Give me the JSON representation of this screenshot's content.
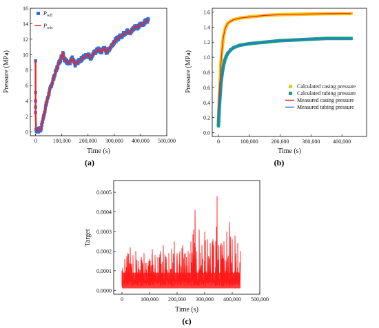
{
  "figure": {
    "panels": [
      "(a)",
      "(b)",
      "(c)"
    ]
  },
  "chart_data": [
    {
      "panel": "(a)",
      "type": "line",
      "xlabel": "Time (s)",
      "ylabel": "Pressure (MPa)",
      "xlim": [
        -20000,
        500000
      ],
      "ylim": [
        -0.5,
        16
      ],
      "xticks": [
        0,
        100000,
        200000,
        300000,
        400000,
        500000
      ],
      "xtick_labels": [
        "0",
        "100,000",
        "200,000",
        "300,000",
        "400,000",
        "500,000"
      ],
      "yticks": [
        0,
        2,
        4,
        6,
        8,
        10,
        12,
        14,
        16
      ],
      "ytick_labels": [
        "0",
        "2",
        "4",
        "6",
        "8",
        "10",
        "12",
        "14",
        "16"
      ],
      "legend_position": "top-left",
      "colors": {
        "measured": "#2e6fd8",
        "calculated": "#e8282e"
      },
      "series": [
        {
          "name": "P_wfl",
          "legend_main": "P",
          "legend_sub": "wfl",
          "style": "square-markers",
          "x": [
            0,
            0,
            0,
            0,
            0,
            2000,
            5000,
            10000,
            15000,
            20000,
            30000,
            40000,
            50000,
            60000,
            70000,
            80000,
            90000,
            100000,
            105000,
            110000,
            120000,
            130000,
            140000,
            150000,
            160000,
            170000,
            180000,
            190000,
            200000,
            210000,
            220000,
            230000,
            240000,
            250000,
            260000,
            270000,
            280000,
            290000,
            300000,
            310000,
            320000,
            330000,
            340000,
            350000,
            360000,
            370000,
            380000,
            390000,
            400000,
            410000,
            420000,
            430000
          ],
          "y": [
            9.2,
            5.1,
            4.0,
            3.2,
            2.5,
            0.3,
            0.2,
            0.2,
            0.3,
            0.3,
            1.9,
            3.5,
            4.9,
            6.0,
            7.1,
            8.1,
            9.0,
            9.8,
            10.2,
            9.3,
            9.1,
            8.9,
            9.5,
            8.7,
            9.0,
            9.3,
            9.6,
            9.8,
            10.0,
            9.6,
            10.1,
            10.4,
            10.7,
            10.3,
            10.9,
            10.3,
            10.7,
            11.2,
            11.7,
            12.0,
            12.3,
            12.5,
            12.8,
            13.0,
            12.8,
            13.3,
            13.7,
            13.5,
            13.9,
            14.0,
            14.3,
            14.5
          ]
        },
        {
          "name": "P_wfc",
          "legend_main": "P",
          "legend_sub": "wfc",
          "style": "line",
          "x": [
            0,
            0,
            0,
            0,
            0,
            2000,
            5000,
            10000,
            15000,
            20000,
            30000,
            40000,
            50000,
            60000,
            70000,
            80000,
            90000,
            100000,
            105000,
            110000,
            120000,
            130000,
            140000,
            150000,
            160000,
            170000,
            180000,
            190000,
            200000,
            210000,
            220000,
            230000,
            240000,
            250000,
            260000,
            270000,
            280000,
            290000,
            300000,
            310000,
            320000,
            330000,
            340000,
            350000,
            360000,
            370000,
            380000,
            390000,
            400000,
            410000,
            420000,
            430000
          ],
          "y": [
            9.2,
            5.1,
            4.0,
            3.2,
            2.5,
            0.3,
            0.2,
            0.2,
            0.3,
            0.3,
            1.9,
            3.5,
            4.9,
            6.0,
            7.1,
            8.1,
            9.0,
            9.8,
            10.2,
            9.3,
            9.1,
            8.9,
            9.5,
            8.7,
            9.0,
            9.3,
            9.6,
            9.8,
            10.0,
            9.6,
            10.1,
            10.4,
            10.7,
            10.3,
            10.9,
            10.3,
            10.7,
            11.2,
            11.7,
            12.0,
            12.3,
            12.5,
            12.8,
            13.0,
            12.8,
            13.3,
            13.7,
            13.5,
            13.9,
            14.0,
            14.3,
            14.5
          ]
        }
      ]
    },
    {
      "panel": "(b)",
      "type": "line",
      "xlabel": "Time (s)",
      "ylabel": "Pressure (MPa)",
      "xlim": [
        -20000,
        480000
      ],
      "ylim": [
        -0.05,
        1.65
      ],
      "xticks": [
        0,
        100000,
        200000,
        300000,
        400000
      ],
      "xtick_labels": [
        "0",
        "100,000",
        "200,000",
        "300,000",
        "400,000"
      ],
      "yticks": [
        0.0,
        0.2,
        0.4,
        0.6,
        0.8,
        1.0,
        1.2,
        1.4,
        1.6
      ],
      "ytick_labels": [
        "0.0",
        "0.2",
        "0.4",
        "0.6",
        "0.8",
        "1.0",
        "1.2",
        "1.4",
        "1.6"
      ],
      "legend_position": "center-right",
      "series": [
        {
          "name": "Calculated casing pressure",
          "style": "square-markers",
          "color": "#f5c518",
          "x": [
            0,
            2000,
            5000,
            8000,
            12000,
            16000,
            20000,
            25000,
            30000,
            40000,
            50000,
            70000,
            100000,
            150000,
            200000,
            250000,
            300000,
            350000,
            400000,
            430000
          ],
          "y": [
            0.12,
            0.35,
            0.65,
            0.9,
            1.12,
            1.26,
            1.35,
            1.41,
            1.45,
            1.48,
            1.5,
            1.52,
            1.535,
            1.555,
            1.565,
            1.57,
            1.575,
            1.578,
            1.58,
            1.58
          ]
        },
        {
          "name": "Calculated tubing pressure",
          "style": "square-markers",
          "color": "#1a9e8a",
          "x": [
            0,
            2000,
            5000,
            8000,
            12000,
            16000,
            20000,
            25000,
            30000,
            40000,
            50000,
            70000,
            100000,
            150000,
            200000,
            250000,
            300000,
            350000,
            400000,
            430000
          ],
          "y": [
            0.09,
            0.27,
            0.47,
            0.64,
            0.78,
            0.88,
            0.95,
            1.01,
            1.05,
            1.1,
            1.13,
            1.16,
            1.18,
            1.2,
            1.22,
            1.23,
            1.24,
            1.25,
            1.25,
            1.25
          ]
        },
        {
          "name": "Measured casing pressure",
          "style": "line",
          "color": "#e8282e",
          "x": [
            0,
            2000,
            5000,
            8000,
            12000,
            16000,
            20000,
            25000,
            30000,
            40000,
            50000,
            70000,
            100000,
            150000,
            200000,
            250000,
            300000,
            350000,
            400000,
            430000
          ],
          "y": [
            0.12,
            0.35,
            0.65,
            0.9,
            1.12,
            1.26,
            1.35,
            1.41,
            1.45,
            1.48,
            1.5,
            1.52,
            1.535,
            1.555,
            1.565,
            1.57,
            1.575,
            1.578,
            1.58,
            1.58
          ]
        },
        {
          "name": "Measured tubing pressure",
          "style": "line",
          "color": "#2e6fd8",
          "x": [
            0,
            2000,
            5000,
            8000,
            12000,
            16000,
            20000,
            25000,
            30000,
            40000,
            50000,
            70000,
            100000,
            150000,
            200000,
            250000,
            300000,
            350000,
            400000,
            430000
          ],
          "y": [
            0.09,
            0.27,
            0.47,
            0.64,
            0.78,
            0.88,
            0.95,
            1.01,
            1.05,
            1.1,
            1.13,
            1.16,
            1.18,
            1.2,
            1.22,
            1.23,
            1.24,
            1.25,
            1.25,
            1.25
          ]
        }
      ]
    },
    {
      "panel": "(c)",
      "type": "line",
      "xlabel": "Time (s)",
      "ylabel": "Target",
      "xlim": [
        -30000,
        500000
      ],
      "ylim": [
        -2e-05,
        0.00056
      ],
      "xticks": [
        0,
        100000,
        200000,
        300000,
        400000,
        500000
      ],
      "xtick_labels": [
        "0",
        "100,000",
        "200,000",
        "300,000",
        "400,000",
        "500,000"
      ],
      "yticks": [
        0.0,
        0.0001,
        0.0002,
        0.0003,
        0.0004,
        0.0005
      ],
      "ytick_labels": [
        "0.0000",
        "0.0001",
        "0.0002",
        "0.0003",
        "0.0004",
        "0.0005"
      ],
      "color": "#ff1a1a",
      "series": [
        {
          "name": "",
          "x": [
            0,
            10000,
            20000,
            30000,
            40000,
            50000,
            60000,
            70000,
            80000,
            90000,
            100000,
            110000,
            120000,
            130000,
            140000,
            150000,
            160000,
            170000,
            180000,
            190000,
            200000,
            210000,
            220000,
            230000,
            240000,
            250000,
            260000,
            265000,
            270000,
            280000,
            290000,
            300000,
            310000,
            320000,
            330000,
            340000,
            345000,
            350000,
            360000,
            370000,
            380000,
            390000,
            400000,
            410000,
            420000,
            430000
          ],
          "y": [
            0.0001,
            0.00016,
            0.00019,
            0.00022,
            0.00018,
            0.0002,
            0.00015,
            0.00017,
            0.00019,
            0.00014,
            0.00016,
            0.00021,
            0.00018,
            0.00017,
            0.0002,
            0.00023,
            0.00017,
            0.00019,
            0.00021,
            0.00025,
            0.00019,
            0.0002,
            0.00023,
            0.00019,
            0.0002,
            0.00025,
            0.00031,
            0.00041,
            0.0002,
            0.00031,
            0.00023,
            0.0003,
            0.00026,
            0.00024,
            0.00026,
            0.00025,
            0.00048,
            0.00023,
            0.00024,
            0.00025,
            0.0003,
            0.00035,
            0.00026,
            0.00028,
            0.00024,
            0.0002
          ]
        }
      ]
    }
  ]
}
